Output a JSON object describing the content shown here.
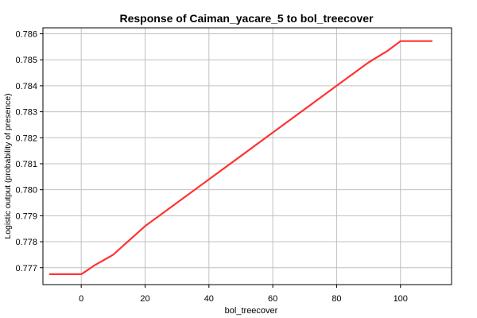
{
  "chart_data": {
    "type": "line",
    "title": "Response of Caiman_yacare_5 to bol_treecover",
    "xlabel": "bol_treecover",
    "ylabel": "Logistic output (probability of presence)",
    "xlim": [
      -12,
      116
    ],
    "ylim": [
      0.77635,
      0.78623
    ],
    "xticks": [
      0,
      20,
      40,
      60,
      80,
      100
    ],
    "yticks": [
      0.777,
      0.778,
      0.779,
      0.78,
      0.781,
      0.782,
      0.783,
      0.784,
      0.785,
      0.786
    ],
    "xtick_labels": [
      "0",
      "20",
      "40",
      "60",
      "80",
      "100"
    ],
    "ytick_labels": [
      "0.777",
      "0.778",
      "0.779",
      "0.780",
      "0.781",
      "0.782",
      "0.783",
      "0.784",
      "0.785",
      "0.786"
    ],
    "grid": true,
    "line_color": "#ff3333",
    "series": [
      {
        "x": [
          -10,
          0,
          2,
          4,
          6,
          10,
          20,
          30,
          40,
          50,
          60,
          70,
          80,
          90,
          96,
          100,
          110
        ],
        "y": [
          0.77675,
          0.77675,
          0.77691,
          0.77708,
          0.77722,
          0.7775,
          0.7786,
          0.7795,
          0.7804,
          0.7813,
          0.7822,
          0.7831,
          0.784,
          0.7849,
          0.78535,
          0.78572,
          0.78572
        ]
      }
    ]
  }
}
